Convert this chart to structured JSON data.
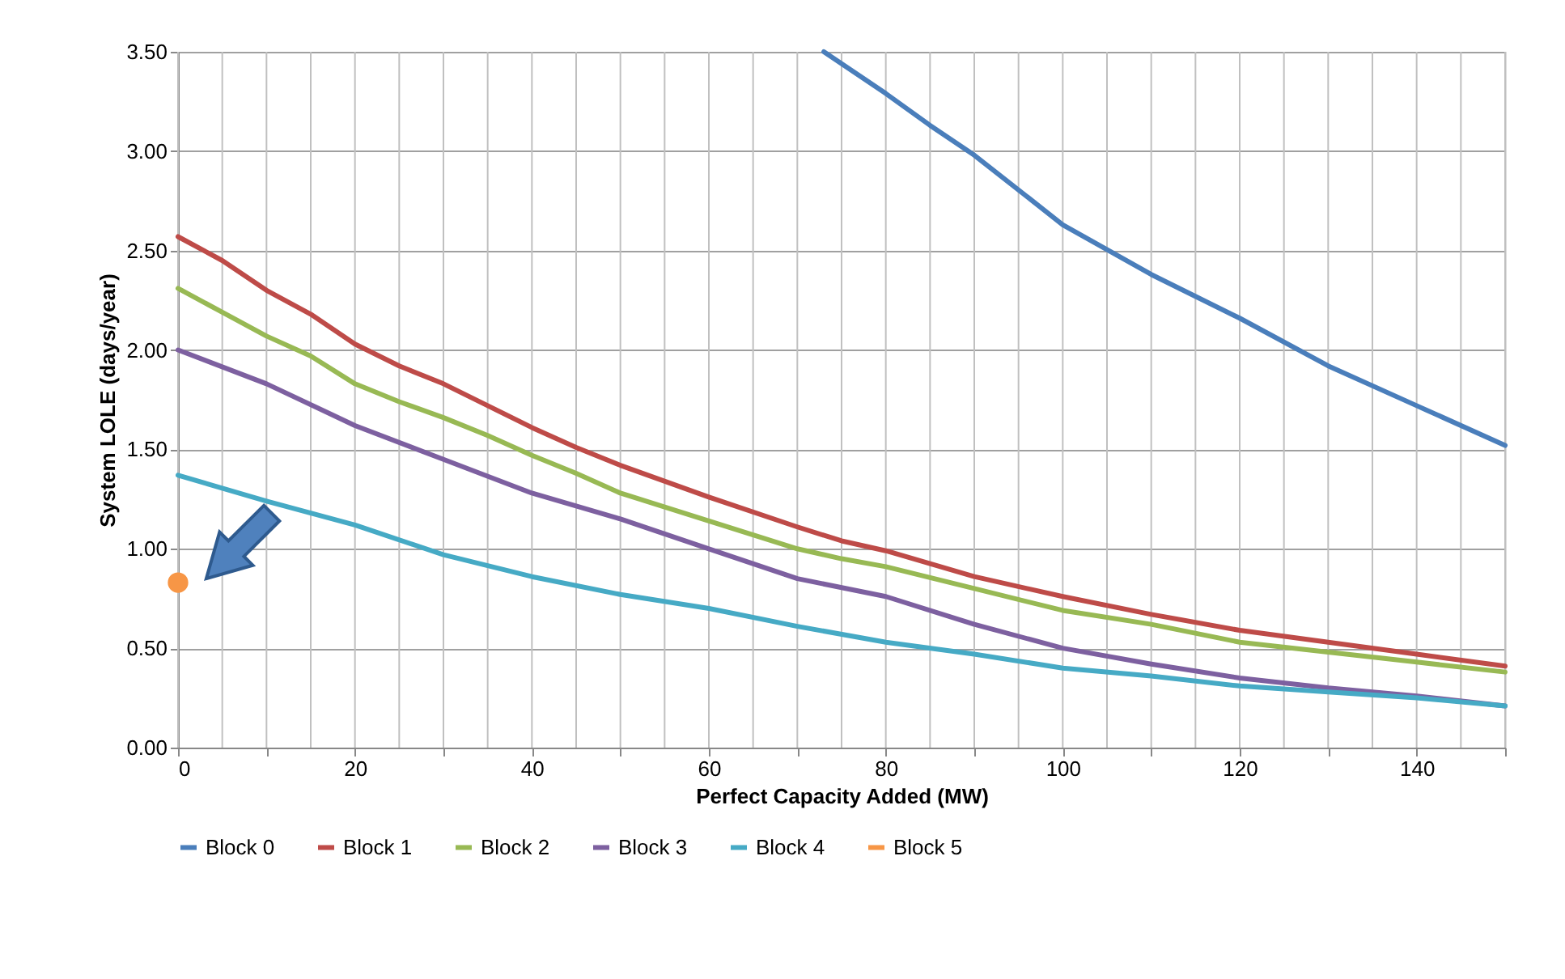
{
  "chart_data": {
    "type": "line",
    "xlabel": "Perfect Capacity Added (MW)",
    "ylabel": "System LOLE (days/year)",
    "xlim": [
      0,
      150
    ],
    "ylim": [
      0,
      3.5
    ],
    "xticks": [
      0,
      {
        "value": 5,
        "label": null
      },
      {
        "value": 10,
        "label": null
      },
      {
        "value": 15,
        "label": null
      },
      20,
      {
        "value": 25,
        "label": null
      },
      {
        "value": 30,
        "label": null
      },
      {
        "value": 35,
        "label": null
      },
      40,
      {
        "value": 45,
        "label": null
      },
      {
        "value": 50,
        "label": null
      },
      {
        "value": 55,
        "label": null
      },
      60,
      {
        "value": 65,
        "label": null
      },
      {
        "value": 70,
        "label": null
      },
      {
        "value": 75,
        "label": null
      },
      80,
      {
        "value": 85,
        "label": null
      },
      {
        "value": 90,
        "label": null
      },
      {
        "value": 95,
        "label": null
      },
      100,
      {
        "value": 105,
        "label": null
      },
      {
        "value": 110,
        "label": null
      },
      {
        "value": 115,
        "label": null
      },
      120,
      {
        "value": 125,
        "label": null
      },
      {
        "value": 130,
        "label": null
      },
      {
        "value": 135,
        "label": null
      },
      140,
      {
        "value": 145,
        "label": null
      },
      {
        "value": 150,
        "label": null
      }
    ],
    "yticks": [
      {
        "value": 0,
        "label": "0.00"
      },
      {
        "value": 0.5,
        "label": "0.50"
      },
      {
        "value": 1,
        "label": "1.00"
      },
      {
        "value": 1.5,
        "label": "1.50"
      },
      {
        "value": 2,
        "label": "2.00"
      },
      {
        "value": 2.5,
        "label": "2.50"
      },
      {
        "value": 3,
        "label": "3.00"
      },
      {
        "value": 3.5,
        "label": "3.50"
      }
    ],
    "grid": true,
    "legend": "bottom",
    "series": [
      {
        "name": "Block 0",
        "color": "#4a7ebb",
        "x": [
          73,
          80,
          85,
          90,
          100,
          110,
          120,
          130,
          140,
          150
        ],
        "values": [
          3.5,
          3.29,
          3.13,
          2.98,
          2.63,
          2.38,
          2.16,
          1.92,
          1.72,
          1.52
        ]
      },
      {
        "name": "Block 1",
        "color": "#be4b48",
        "x": [
          0,
          5,
          10,
          15,
          20,
          25,
          30,
          35,
          40,
          45,
          50,
          60,
          70,
          75,
          80,
          90,
          100,
          110,
          120,
          130,
          140,
          150
        ],
        "values": [
          2.57,
          2.45,
          2.3,
          2.18,
          2.03,
          1.92,
          1.83,
          1.72,
          1.61,
          1.51,
          1.42,
          1.26,
          1.11,
          1.04,
          0.99,
          0.86,
          0.76,
          0.67,
          0.59,
          0.53,
          0.47,
          0.41
        ]
      },
      {
        "name": "Block 2",
        "color": "#98b954",
        "x": [
          0,
          5,
          10,
          15,
          20,
          25,
          30,
          35,
          40,
          45,
          50,
          60,
          70,
          75,
          80,
          90,
          100,
          110,
          120,
          130,
          140,
          150
        ],
        "values": [
          2.31,
          2.19,
          2.07,
          1.97,
          1.83,
          1.74,
          1.66,
          1.57,
          1.47,
          1.38,
          1.28,
          1.14,
          1.0,
          0.95,
          0.91,
          0.8,
          0.69,
          0.62,
          0.53,
          0.48,
          0.43,
          0.38
        ]
      },
      {
        "name": "Block 3",
        "color": "#7d60a0",
        "x": [
          0,
          10,
          20,
          30,
          40,
          50,
          60,
          70,
          80,
          90,
          100,
          110,
          120,
          130,
          140,
          150
        ],
        "values": [
          2.0,
          1.83,
          1.62,
          1.45,
          1.28,
          1.15,
          1.0,
          0.85,
          0.76,
          0.62,
          0.5,
          0.42,
          0.35,
          0.3,
          0.26,
          0.21
        ]
      },
      {
        "name": "Block 4",
        "color": "#46aac5",
        "x": [
          0,
          10,
          20,
          30,
          40,
          50,
          60,
          70,
          80,
          90,
          100,
          110,
          120,
          130,
          140,
          150
        ],
        "values": [
          1.37,
          1.24,
          1.12,
          0.97,
          0.86,
          0.77,
          0.7,
          0.61,
          0.53,
          0.47,
          0.4,
          0.36,
          0.31,
          0.28,
          0.25,
          0.21
        ]
      },
      {
        "name": "Block 5",
        "color": "#f79646",
        "type": "scatter",
        "marker": "circle",
        "x": [
          0
        ],
        "values": [
          0.83
        ]
      }
    ]
  }
}
